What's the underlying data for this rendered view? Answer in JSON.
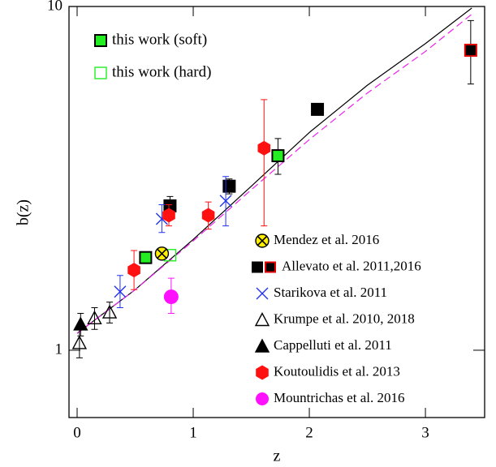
{
  "chart_data": {
    "type": "scatter",
    "xlabel": "z",
    "ylabel": "b(z)",
    "xlim": [
      -0.07,
      3.51
    ],
    "ylim": [
      0.637,
      10
    ],
    "ylog": true,
    "xticks": [
      0,
      1,
      2,
      3
    ],
    "yticks": [
      1,
      10
    ],
    "series": [
      {
        "name": "this work (soft)",
        "marker": "square",
        "color": "#22ee22",
        "edge": "#000000",
        "x": [
          0.59,
          1.73
        ],
        "values": [
          1.86,
          3.68
        ],
        "ylow": [
          1.8,
          3.25
        ],
        "yhigh": [
          1.93,
          4.13
        ]
      },
      {
        "name": "this work (hard)",
        "marker": "open-square",
        "color": "#22ee22",
        "x": [
          0.8
        ],
        "values": [
          1.89
        ],
        "ylow": [
          null
        ],
        "yhigh": [
          null
        ]
      },
      {
        "name": "Mendez et al. 2016",
        "marker": "circle-x",
        "color": "#ffee00",
        "edge": "#000000",
        "x": [
          0.73
        ],
        "values": [
          1.91
        ],
        "ylow": [
          null
        ],
        "yhigh": [
          null
        ]
      },
      {
        "name": "Allevato et al. 2011,2016",
        "marker": "square",
        "color": "#000000",
        "edge_colors": [
          "#000000",
          "#000000",
          "#000000",
          "#e00000"
        ],
        "x": [
          0.8,
          1.31,
          2.07,
          3.39
        ],
        "values": [
          2.63,
          3.0,
          5.02,
          7.46
        ],
        "ylow": [
          2.45,
          2.85,
          null,
          5.95
        ],
        "yhigh": [
          2.8,
          3.15,
          null,
          9.1
        ]
      },
      {
        "name": "Starikova et al. 2011",
        "marker": "x",
        "color": "#2233ee",
        "x": [
          0.37,
          0.73,
          1.28
        ],
        "values": [
          1.48,
          2.41,
          2.72
        ],
        "ylow": [
          1.33,
          2.2,
          2.3
        ],
        "yhigh": [
          1.65,
          2.65,
          3.2
        ]
      },
      {
        "name": "Krumpe et al. 2010, 2018",
        "marker": "open-triangle",
        "color": "#000000",
        "x": [
          0.02,
          0.15,
          0.28
        ],
        "values": [
          1.05,
          1.24,
          1.29
        ],
        "ylow": [
          0.95,
          1.15,
          1.2
        ],
        "yhigh": [
          1.15,
          1.33,
          1.38
        ]
      },
      {
        "name": "Cappelluti et al. 2011",
        "marker": "triangle",
        "color": "#000000",
        "x": [
          0.03
        ],
        "values": [
          1.19
        ],
        "ylow": [
          1.1
        ],
        "yhigh": [
          1.28
        ]
      },
      {
        "name": "Koutoulidis et al. 2013",
        "marker": "hexagon",
        "color": "#ff1111",
        "x": [
          0.49,
          0.79,
          1.13,
          1.61
        ],
        "values": [
          1.71,
          2.47,
          2.47,
          3.87
        ],
        "ylow": [
          1.5,
          2.3,
          2.25,
          2.3
        ],
        "yhigh": [
          1.95,
          2.65,
          2.7,
          5.36
        ]
      },
      {
        "name": "Mountrichas et al. 2016",
        "marker": "circle",
        "color": "#ff11ff",
        "x": [
          0.81
        ],
        "values": [
          1.43
        ],
        "ylow": [
          1.28
        ],
        "yhigh": [
          1.62
        ]
      }
    ],
    "lines": [
      {
        "color": "#000000",
        "dash": false,
        "x": [
          0,
          0.5,
          1,
          1.5,
          2,
          2.5,
          3,
          3.4
        ],
        "values": [
          1.12,
          1.5,
          2.1,
          3.0,
          4.3,
          5.9,
          7.8,
          9.9
        ]
      },
      {
        "color": "#ee22ee",
        "dash": true,
        "x": [
          0,
          0.5,
          1,
          1.5,
          2,
          2.5,
          3,
          3.4
        ],
        "values": [
          1.12,
          1.5,
          2.08,
          2.93,
          4.1,
          5.6,
          7.4,
          9.5
        ]
      }
    ]
  }
}
